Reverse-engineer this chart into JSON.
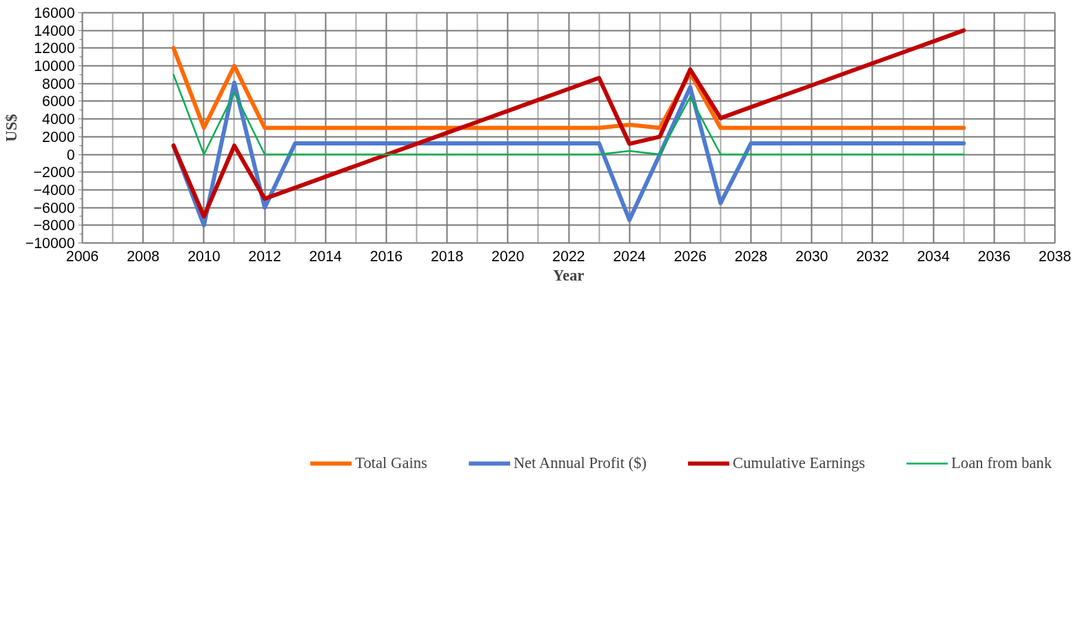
{
  "chart_data": {
    "type": "line",
    "xlabel": "Year",
    "ylabel": "US$",
    "x": [
      2009,
      2010,
      2011,
      2012,
      2013,
      2014,
      2015,
      2016,
      2017,
      2018,
      2019,
      2020,
      2021,
      2022,
      2023,
      2024,
      2025,
      2026,
      2027,
      2028,
      2029,
      2030,
      2031,
      2032,
      2033,
      2034,
      2035
    ],
    "series": [
      {
        "name": "Total Gains",
        "color": "#ff6a00",
        "values": [
          12000,
          3000,
          10000,
          3000,
          3000,
          3000,
          3000,
          3000,
          3000,
          3000,
          3000,
          3000,
          3000,
          3000,
          3000,
          3350,
          3000,
          9200,
          3000,
          3000,
          3000,
          3000,
          3000,
          3000,
          3000,
          3000,
          3000
        ]
      },
      {
        "name": "Net Annual Profit ($)",
        "color": "#4f7bd0",
        "values": [
          1000,
          -8000,
          8100,
          -6000,
          1250,
          1250,
          1250,
          1250,
          1250,
          1250,
          1250,
          1250,
          1250,
          1250,
          1250,
          -7400,
          0,
          7600,
          -5500,
          1250,
          1250,
          1250,
          1250,
          1250,
          1250,
          1250,
          1250
        ]
      },
      {
        "name": "Cumulative Earnings",
        "color": "#c00000",
        "values": [
          1000,
          -7000,
          1000,
          -5000,
          -3760,
          -2520,
          -1280,
          -40,
          1200,
          2440,
          3680,
          4920,
          6160,
          7400,
          8640,
          1200,
          2000,
          9600,
          4100,
          5340,
          6580,
          7810,
          9050,
          10290,
          11520,
          12760,
          14000
        ]
      },
      {
        "name": "Loan from bank",
        "color": "#00b050",
        "values": [
          9000,
          0,
          7000,
          0,
          0,
          0,
          0,
          0,
          0,
          0,
          0,
          0,
          0,
          0,
          0,
          400,
          0,
          6500,
          0,
          0,
          0,
          0,
          0,
          0,
          0,
          0,
          0
        ]
      }
    ],
    "xlim": [
      2006,
      2038
    ],
    "xticks": [
      2006,
      2008,
      2010,
      2012,
      2014,
      2016,
      2018,
      2020,
      2022,
      2024,
      2026,
      2028,
      2030,
      2032,
      2034,
      2036,
      2038
    ],
    "ylim": [
      -10000,
      16000
    ],
    "yticks": [
      -10000,
      -8000,
      -6000,
      -4000,
      -2000,
      0,
      2000,
      4000,
      6000,
      8000,
      10000,
      12000,
      14000,
      16000
    ],
    "grid": true,
    "legend": "bottom",
    "marker": "none",
    "line_style": "solid"
  }
}
